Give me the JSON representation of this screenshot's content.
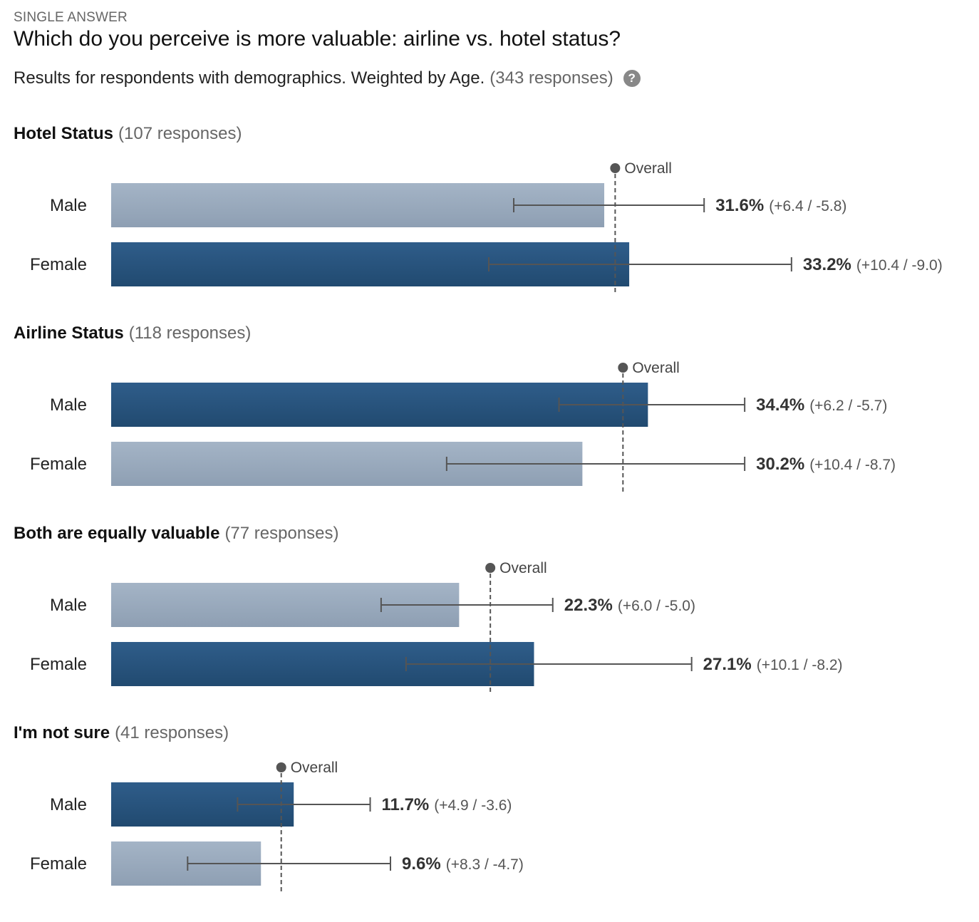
{
  "header": {
    "question_type": "SINGLE ANSWER",
    "title": "Which do you perceive is more valuable: airline vs. hotel status?",
    "subtitle": "Results for respondents with demographics. Weighted by Age.",
    "subtitle_responses": "(343 responses)",
    "help_icon": "question-circle-icon"
  },
  "colors": {
    "dark_bar": "#2a5580",
    "light_bar": "#9aabbe",
    "error_bar": "#555555",
    "overall_line": "#555555"
  },
  "overall_label": "Overall",
  "chart_data": {
    "type": "bar",
    "orientation": "horizontal",
    "value_unit": "%",
    "xlim": [
      0,
      40
    ],
    "groups": [
      {
        "name": "Hotel Status",
        "responses": "(107 responses)",
        "overall": 32.3,
        "bars": [
          {
            "label": "Male",
            "value": 31.6,
            "value_text": "31.6%",
            "ci_plus": 6.4,
            "ci_minus": 5.8,
            "ci_text": "(+6.4 / -5.8)",
            "shade": "light"
          },
          {
            "label": "Female",
            "value": 33.2,
            "value_text": "33.2%",
            "ci_plus": 10.4,
            "ci_minus": 9.0,
            "ci_text": "(+10.4 / -9.0)",
            "shade": "dark"
          }
        ]
      },
      {
        "name": "Airline Status",
        "responses": "(118 responses)",
        "overall": 32.8,
        "bars": [
          {
            "label": "Male",
            "value": 34.4,
            "value_text": "34.4%",
            "ci_plus": 6.2,
            "ci_minus": 5.7,
            "ci_text": "(+6.2 / -5.7)",
            "shade": "dark"
          },
          {
            "label": "Female",
            "value": 30.2,
            "value_text": "30.2%",
            "ci_plus": 10.4,
            "ci_minus": 8.7,
            "ci_text": "(+10.4 / -8.7)",
            "shade": "light"
          }
        ]
      },
      {
        "name": "Both are equally valuable",
        "responses": "(77 responses)",
        "overall": 24.3,
        "bars": [
          {
            "label": "Male",
            "value": 22.3,
            "value_text": "22.3%",
            "ci_plus": 6.0,
            "ci_minus": 5.0,
            "ci_text": "(+6.0 / -5.0)",
            "shade": "light"
          },
          {
            "label": "Female",
            "value": 27.1,
            "value_text": "27.1%",
            "ci_plus": 10.1,
            "ci_minus": 8.2,
            "ci_text": "(+10.1 / -8.2)",
            "shade": "dark"
          }
        ]
      },
      {
        "name": "I'm not sure",
        "responses": "(41 responses)",
        "overall": 10.9,
        "bars": [
          {
            "label": "Male",
            "value": 11.7,
            "value_text": "11.7%",
            "ci_plus": 4.9,
            "ci_minus": 3.6,
            "ci_text": "(+4.9 / -3.6)",
            "shade": "dark"
          },
          {
            "label": "Female",
            "value": 9.6,
            "value_text": "9.6%",
            "ci_plus": 8.3,
            "ci_minus": 4.7,
            "ci_text": "(+8.3 / -4.7)",
            "shade": "light"
          }
        ]
      }
    ]
  }
}
